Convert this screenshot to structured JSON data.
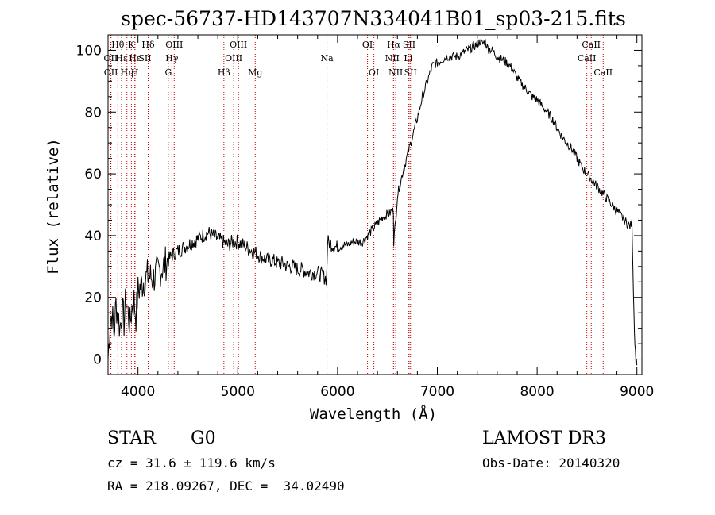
{
  "chart_data": {
    "type": "line",
    "title": "spec-56737-HD143707N334041B01_sp03-215.fits",
    "xlabel": "Wavelength (Å)",
    "ylabel": "Flux (relative)",
    "xlim": [
      3700,
      9050
    ],
    "ylim": [
      -5,
      105
    ],
    "xticks": [
      4000,
      5000,
      6000,
      7000,
      8000,
      9000
    ],
    "yticks": [
      0,
      20,
      40,
      60,
      80,
      100
    ],
    "series": [
      {
        "name": "flux",
        "x": [
          3700,
          3720,
          3740,
          3760,
          3780,
          3800,
          3820,
          3840,
          3860,
          3880,
          3900,
          3920,
          3940,
          3960,
          3980,
          4000,
          4050,
          4100,
          4150,
          4200,
          4250,
          4300,
          4350,
          4400,
          4450,
          4500,
          4550,
          4600,
          4650,
          4700,
          4750,
          4800,
          4850,
          4900,
          4950,
          5000,
          5050,
          5100,
          5150,
          5200,
          5250,
          5300,
          5350,
          5400,
          5450,
          5500,
          5550,
          5600,
          5650,
          5700,
          5750,
          5800,
          5850,
          5890,
          5900,
          5950,
          6000,
          6050,
          6100,
          6150,
          6200,
          6250,
          6300,
          6350,
          6400,
          6450,
          6500,
          6520,
          6540,
          6560,
          6563,
          6580,
          6600,
          6650,
          6700,
          6750,
          6800,
          6850,
          6900,
          6950,
          7000,
          7050,
          7100,
          7150,
          7200,
          7250,
          7300,
          7350,
          7400,
          7430,
          7450,
          7480,
          7500,
          7550,
          7600,
          7650,
          7700,
          7750,
          7800,
          7850,
          7900,
          7950,
          8000,
          8050,
          8100,
          8150,
          8200,
          8250,
          8300,
          8350,
          8400,
          8450,
          8500,
          8550,
          8600,
          8650,
          8700,
          8750,
          8800,
          8850,
          8900,
          8930,
          8950,
          8960,
          8970,
          8980,
          8990,
          9000
        ],
        "values": [
          0,
          12,
          15,
          8,
          18,
          14,
          10,
          16,
          12,
          20,
          15,
          11,
          17,
          19,
          14,
          22,
          25,
          27,
          26,
          28,
          30,
          32,
          34,
          35,
          36,
          37,
          38,
          39,
          40,
          41,
          40,
          39,
          38,
          37,
          38,
          38,
          37,
          36,
          35,
          34,
          33,
          32,
          32,
          31,
          31,
          30,
          30,
          29,
          29,
          28,
          28,
          28,
          27,
          26,
          38,
          37,
          36,
          37,
          37,
          38,
          38,
          38,
          40,
          42,
          44,
          46,
          47,
          47,
          48,
          48,
          38,
          44,
          53,
          60,
          66,
          72,
          78,
          85,
          90,
          95,
          96,
          97,
          98,
          98,
          98,
          99,
          100,
          101,
          102,
          103,
          102,
          103,
          101,
          100,
          98,
          97,
          96,
          94,
          91,
          89,
          87,
          85,
          84,
          82,
          80,
          78,
          75,
          72,
          70,
          68,
          65,
          62,
          60,
          58,
          56,
          54,
          52,
          50,
          48,
          46,
          44,
          43,
          44,
          30,
          15,
          5,
          0,
          -2
        ]
      }
    ],
    "line_markers": [
      {
        "label": "Hθ",
        "x": 3798,
        "row": 0
      },
      {
        "label": "OII",
        "x": 3727,
        "row": 1
      },
      {
        "label": "OII",
        "x": 3729,
        "row": 2
      },
      {
        "label": "Hε",
        "x": 3835,
        "row": 1
      },
      {
        "label": "Hη",
        "x": 3889,
        "row": 2
      },
      {
        "label": "K",
        "x": 3934,
        "row": 0
      },
      {
        "label": "Hε",
        "x": 3970,
        "row": 1
      },
      {
        "label": "H",
        "x": 3968,
        "row": 2
      },
      {
        "label": "SII",
        "x": 4070,
        "row": 1
      },
      {
        "label": "Hδ",
        "x": 4102,
        "row": 0
      },
      {
        "label": "OIII",
        "x": 4363,
        "row": 0
      },
      {
        "label": "Hγ",
        "x": 4340,
        "row": 1
      },
      {
        "label": "G",
        "x": 4304,
        "row": 2
      },
      {
        "label": "Hβ",
        "x": 4861,
        "row": 2
      },
      {
        "label": "OIII",
        "x": 5007,
        "row": 0
      },
      {
        "label": "OIII",
        "x": 4959,
        "row": 1
      },
      {
        "label": "Mg",
        "x": 5175,
        "row": 2
      },
      {
        "label": "Na",
        "x": 5894,
        "row": 1
      },
      {
        "label": "OI",
        "x": 6300,
        "row": 0
      },
      {
        "label": "OI",
        "x": 6364,
        "row": 2
      },
      {
        "label": "Hα",
        "x": 6563,
        "row": 0
      },
      {
        "label": "NII",
        "x": 6548,
        "row": 1
      },
      {
        "label": "NII",
        "x": 6583,
        "row": 2
      },
      {
        "label": "SII",
        "x": 6717,
        "row": 0
      },
      {
        "label": "Li",
        "x": 6708,
        "row": 1
      },
      {
        "label": "SII",
        "x": 6731,
        "row": 2
      },
      {
        "label": "CaII",
        "x": 8542,
        "row": 0
      },
      {
        "label": "CaII",
        "x": 8498,
        "row": 1
      },
      {
        "label": "CaII",
        "x": 8662,
        "row": 2
      }
    ]
  },
  "info": {
    "object_class": "STAR",
    "subclass": "G0",
    "survey": "LAMOST DR3",
    "redshift": "cz = 31.6 ± 119.6 km/s",
    "obs_date": "Obs-Date: 20140320",
    "coords": "RA = 218.09267, DEC =  34.02490"
  },
  "colors": {
    "line": "#000000",
    "marker": "#cc0000",
    "axis": "#000000"
  }
}
